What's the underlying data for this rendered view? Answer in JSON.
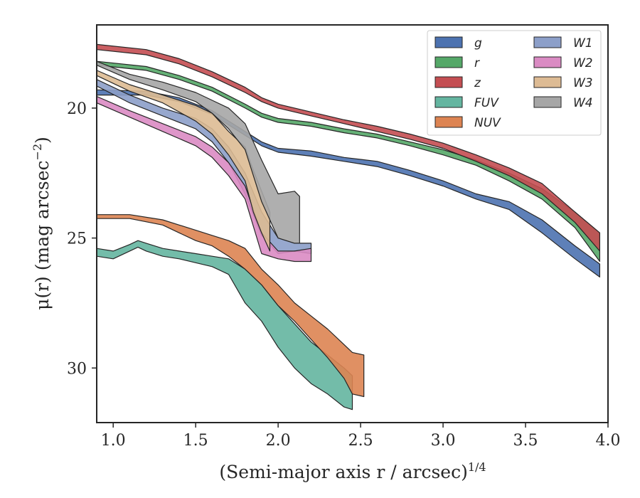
{
  "chart_data": {
    "type": "area",
    "xlabel": "(Semi-major axis r / arcsec)",
    "xlabel_exponent": "1/4",
    "ylabel": "μ(r) (mag arcsec",
    "ylabel_exponent": "−2",
    "ylabel_close": ")",
    "xlim": [
      0.9,
      4.0
    ],
    "ylim": [
      32.1,
      16.8
    ],
    "y_inverted": true,
    "x_ticks": [
      1.0,
      1.5,
      2.0,
      2.5,
      3.0,
      3.5,
      4.0
    ],
    "x_tick_labels": [
      "1.0",
      "1.5",
      "2.0",
      "2.5",
      "3.0",
      "3.5",
      "4.0"
    ],
    "y_ticks": [
      20,
      25,
      30
    ],
    "y_tick_labels": [
      "20",
      "25",
      "30"
    ],
    "grid": false,
    "legend_position": "top-right",
    "legend_columns": 2,
    "series": [
      {
        "name": "g",
        "color": "#4c72b0",
        "x": [
          0.9,
          1.2,
          1.4,
          1.6,
          1.8,
          1.9,
          2.0,
          2.2,
          2.4,
          2.6,
          2.8,
          3.0,
          3.2,
          3.4,
          3.6,
          3.8,
          3.95
        ],
        "y_upper": [
          19.3,
          19.35,
          19.6,
          20.1,
          20.9,
          21.3,
          21.55,
          21.65,
          21.9,
          22.05,
          22.4,
          22.8,
          23.3,
          23.6,
          24.3,
          25.3,
          26.0
        ],
        "y_lower": [
          19.5,
          19.5,
          19.75,
          20.25,
          21.05,
          21.45,
          21.7,
          21.85,
          22.05,
          22.25,
          22.6,
          23.0,
          23.5,
          23.9,
          24.8,
          25.8,
          26.5
        ]
      },
      {
        "name": "r",
        "color": "#55a868",
        "x": [
          0.9,
          1.2,
          1.4,
          1.6,
          1.8,
          1.9,
          2.0,
          2.2,
          2.4,
          2.6,
          2.8,
          3.0,
          3.2,
          3.4,
          3.6,
          3.8,
          3.95
        ],
        "y_upper": [
          18.2,
          18.4,
          18.75,
          19.2,
          19.85,
          20.2,
          20.4,
          20.55,
          20.8,
          21.0,
          21.3,
          21.6,
          22.0,
          22.5,
          23.1,
          24.0,
          24.8
        ],
        "y_lower": [
          18.35,
          18.55,
          18.9,
          19.35,
          20.0,
          20.35,
          20.55,
          20.7,
          20.95,
          21.15,
          21.45,
          21.8,
          22.2,
          22.8,
          23.5,
          24.6,
          25.9
        ]
      },
      {
        "name": "z",
        "color": "#c44e52",
        "x": [
          0.9,
          1.2,
          1.4,
          1.6,
          1.8,
          1.9,
          2.0,
          2.2,
          2.4,
          2.6,
          2.8,
          3.0,
          3.2,
          3.4,
          3.6,
          3.8,
          3.95
        ],
        "y_upper": [
          17.55,
          17.75,
          18.1,
          18.6,
          19.2,
          19.6,
          19.85,
          20.15,
          20.45,
          20.7,
          21.0,
          21.35,
          21.8,
          22.3,
          22.9,
          24.0,
          24.8
        ],
        "y_lower": [
          17.75,
          17.95,
          18.3,
          18.8,
          19.4,
          19.75,
          20.0,
          20.3,
          20.6,
          20.9,
          21.2,
          21.55,
          22.05,
          22.6,
          23.3,
          24.4,
          25.5
        ]
      },
      {
        "name": "FUV",
        "color": "#64b5a0",
        "x": [
          0.9,
          1.0,
          1.1,
          1.15,
          1.2,
          1.3,
          1.4,
          1.5,
          1.6,
          1.7,
          1.8,
          1.9,
          2.0,
          2.1,
          2.2,
          2.3,
          2.4,
          2.45
        ],
        "y_upper": [
          25.4,
          25.5,
          25.25,
          25.1,
          25.2,
          25.4,
          25.5,
          25.6,
          25.7,
          25.8,
          26.2,
          26.8,
          27.6,
          28.3,
          29.0,
          29.5,
          30.0,
          30.3
        ],
        "y_lower": [
          25.7,
          25.8,
          25.5,
          25.35,
          25.5,
          25.7,
          25.8,
          25.95,
          26.1,
          26.4,
          27.5,
          28.2,
          29.2,
          30.0,
          30.6,
          31.0,
          31.5,
          31.6
        ]
      },
      {
        "name": "NUV",
        "color": "#dd8452",
        "x": [
          0.9,
          1.1,
          1.3,
          1.4,
          1.5,
          1.6,
          1.7,
          1.8,
          1.9,
          2.0,
          2.1,
          2.2,
          2.3,
          2.4,
          2.45,
          2.52
        ],
        "y_upper": [
          24.1,
          24.1,
          24.3,
          24.5,
          24.7,
          24.9,
          25.1,
          25.4,
          26.2,
          26.8,
          27.5,
          28.0,
          28.5,
          29.1,
          29.4,
          29.5
        ],
        "y_lower": [
          24.25,
          24.25,
          24.5,
          24.8,
          25.1,
          25.3,
          25.7,
          26.2,
          26.8,
          27.6,
          28.2,
          28.9,
          29.6,
          30.4,
          31.0,
          31.1
        ]
      },
      {
        "name": "W1",
        "color": "#8c9fc9",
        "x": [
          0.9,
          1.1,
          1.3,
          1.5,
          1.6,
          1.7,
          1.8,
          1.9,
          2.0,
          2.1,
          2.2
        ],
        "y_upper": [
          18.9,
          19.5,
          20.0,
          20.4,
          20.8,
          21.5,
          22.5,
          24.0,
          25.0,
          25.2,
          25.2
        ],
        "y_lower": [
          19.15,
          19.8,
          20.3,
          20.8,
          21.3,
          22.1,
          23.3,
          24.9,
          25.6,
          25.5,
          25.6
        ]
      },
      {
        "name": "W2",
        "color": "#da8bc3",
        "x": [
          0.9,
          1.1,
          1.3,
          1.5,
          1.6,
          1.7,
          1.8,
          1.9,
          2.0,
          2.1,
          2.2
        ],
        "y_upper": [
          19.55,
          20.1,
          20.6,
          21.1,
          21.5,
          22.1,
          23.0,
          24.8,
          25.5,
          25.5,
          25.4
        ],
        "y_lower": [
          19.8,
          20.35,
          20.9,
          21.45,
          21.9,
          22.6,
          23.5,
          25.6,
          25.8,
          25.9,
          25.9
        ]
      },
      {
        "name": "W3",
        "color": "#ddbb94",
        "x": [
          0.9,
          1.1,
          1.3,
          1.5,
          1.6,
          1.7,
          1.8,
          1.85,
          1.9,
          1.95
        ],
        "y_upper": [
          18.55,
          19.1,
          19.5,
          19.9,
          20.2,
          20.9,
          21.5,
          22.4,
          23.2,
          24.0
        ],
        "y_lower": [
          18.75,
          19.35,
          19.8,
          20.5,
          21.0,
          21.8,
          22.8,
          24.0,
          24.8,
          25.5
        ]
      },
      {
        "name": "W4",
        "color": "#a6a6a6",
        "x": [
          0.9,
          1.1,
          1.3,
          1.5,
          1.6,
          1.7,
          1.8,
          1.9,
          2.0,
          2.1,
          2.13
        ],
        "y_upper": [
          18.2,
          18.7,
          19.0,
          19.4,
          19.7,
          20.0,
          20.6,
          22.0,
          23.3,
          23.2,
          23.4
        ],
        "y_lower": [
          18.35,
          18.9,
          19.3,
          19.75,
          20.2,
          20.8,
          21.6,
          23.6,
          25.0,
          25.2,
          25.2
        ]
      }
    ]
  }
}
